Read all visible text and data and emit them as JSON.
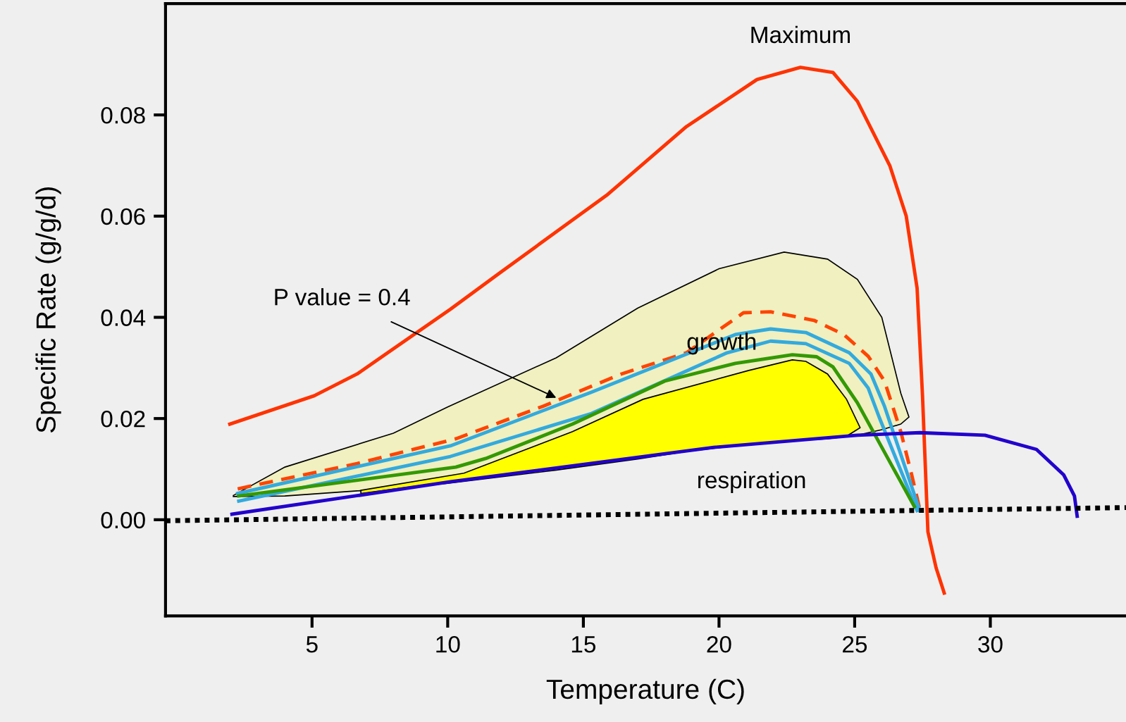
{
  "chart_data": {
    "type": "line",
    "xlabel": "Temperature (C)",
    "ylabel": "Specific Rate (g/g/d)",
    "xlim": [
      -0.4,
      35
    ],
    "ylim": [
      -0.019,
      0.102
    ],
    "xticks": [
      5,
      10,
      15,
      20,
      25,
      30
    ],
    "yticks": [
      {
        "value": 0,
        "label": "0.00"
      },
      {
        "value": 0.02,
        "label": "0.02"
      },
      {
        "value": 0.04,
        "label": "0.04"
      },
      {
        "value": 0.06,
        "label": "0.06"
      },
      {
        "value": 0.08,
        "label": "0.08"
      }
    ],
    "grid": false,
    "legend": false,
    "marker": "none",
    "series": [
      {
        "type": "area",
        "color": "#f0f0c0",
        "x": [
          2.1,
          4,
          8,
          10,
          14,
          17,
          20,
          22.4,
          24,
          25.1,
          26,
          26.7,
          27.0,
          26.7,
          26,
          25.1,
          24,
          22.4,
          20,
          17,
          14,
          10,
          8,
          4,
          2.1
        ],
        "values": [
          0.0048,
          0.0104,
          0.0171,
          0.0223,
          0.032,
          0.0418,
          0.0496,
          0.0529,
          0.0515,
          0.0475,
          0.04,
          0.025,
          0.0203,
          0.0189,
          0.0178,
          0.0167,
          0.016,
          0.0155,
          0.0145,
          0.012,
          0.0098,
          0.0072,
          0.0062,
          0.0047,
          0.0046
        ]
      },
      {
        "type": "area",
        "color": "#ffff00",
        "x": [
          6.8,
          10.6,
          14.6,
          17.2,
          21.1,
          22.7,
          23.2,
          24.0,
          24.7,
          25.2,
          24.7,
          24.0,
          23.2,
          22.7,
          21.1,
          17.2,
          14.6,
          10.6,
          6.8
        ],
        "values": [
          0.0058,
          0.0092,
          0.0174,
          0.0238,
          0.0295,
          0.0316,
          0.0313,
          0.0288,
          0.0238,
          0.0182,
          0.0165,
          0.0162,
          0.0158,
          0.0156,
          0.0149,
          0.0125,
          0.0107,
          0.0079,
          0.0052
        ]
      },
      {
        "color": "#ff3300",
        "line_style": "solid",
        "x": [
          1.97,
          5.08,
          6.66,
          10.1,
          11.9,
          15.9,
          18.8,
          21.4,
          23.0,
          24.2,
          25.1,
          26.3,
          26.9,
          27.3,
          27.5,
          27.7,
          28.0,
          28.3
        ],
        "values": [
          0.0189,
          0.0245,
          0.0288,
          0.0416,
          0.0487,
          0.0643,
          0.0777,
          0.087,
          0.0894,
          0.0884,
          0.0827,
          0.0699,
          0.06,
          0.0458,
          0.0245,
          -0.0024,
          -0.0095,
          -0.0145
        ]
      },
      {
        "color": "#ff4400",
        "line_style": "dashed",
        "x": [
          2.26,
          6.66,
          10.3,
          13.5,
          16.4,
          18.8,
          20.9,
          21.9,
          23.5,
          24.6,
          25.5,
          26.1,
          26.7,
          27.1,
          27.4
        ],
        "values": [
          0.0061,
          0.0111,
          0.016,
          0.0224,
          0.0288,
          0.033,
          0.0409,
          0.0411,
          0.0394,
          0.0366,
          0.0323,
          0.0274,
          0.0174,
          0.0089,
          0.0021
        ]
      },
      {
        "color": "#33aadd",
        "line_style": "solid",
        "x": [
          2.26,
          10.1,
          15.3,
          20.6,
          21.9,
          23.2,
          24.8,
          25.6,
          26.1,
          27.4
        ],
        "values": [
          0.0052,
          0.0146,
          0.0252,
          0.0366,
          0.0377,
          0.037,
          0.033,
          0.0288,
          0.0224,
          0.0018
        ]
      },
      {
        "color": "#33aadd",
        "line_style": "solid",
        "x": [
          2.3,
          10.1,
          15.3,
          20.3,
          21.9,
          23.2,
          24.8,
          25.5,
          25.9,
          27.3
        ],
        "values": [
          0.0037,
          0.0125,
          0.021,
          0.033,
          0.0353,
          0.0348,
          0.0309,
          0.026,
          0.0203,
          0.0018
        ]
      },
      {
        "color": "#339900",
        "line_style": "solid",
        "x": [
          2.3,
          10.3,
          11.4,
          14.6,
          18.0,
          20.6,
          22.7,
          23.6,
          24.2,
          25.1,
          27.2
        ],
        "values": [
          0.0047,
          0.0104,
          0.0121,
          0.0189,
          0.0274,
          0.0309,
          0.0326,
          0.0322,
          0.0302,
          0.0231,
          0.0026
        ]
      },
      {
        "color": "#2200cc",
        "line_style": "solid",
        "x": [
          2.05,
          10.1,
          19.8,
          25.1,
          27.4,
          29.8,
          31.7,
          32.7,
          33.1,
          33.2
        ],
        "values": [
          0.0011,
          0.0075,
          0.0143,
          0.0167,
          0.0172,
          0.0167,
          0.0139,
          0.0089,
          0.0047,
          0.0007
        ]
      },
      {
        "color": "#000000",
        "line_style": "dotted",
        "x": [
          -0.4,
          35
        ],
        "values": [
          -0.0002,
          0.0024
        ]
      }
    ],
    "annotations": [
      {
        "text": "Maximum",
        "x": 23.0,
        "y": 0.0894
      },
      {
        "text": "growth",
        "x": 20.1,
        "y": 0.0348
      },
      {
        "text": "respiration",
        "x": 21.2,
        "y": 0.0014
      },
      {
        "text": "P value = 0.4",
        "x": 14.0,
        "y": 0.0241
      }
    ]
  }
}
